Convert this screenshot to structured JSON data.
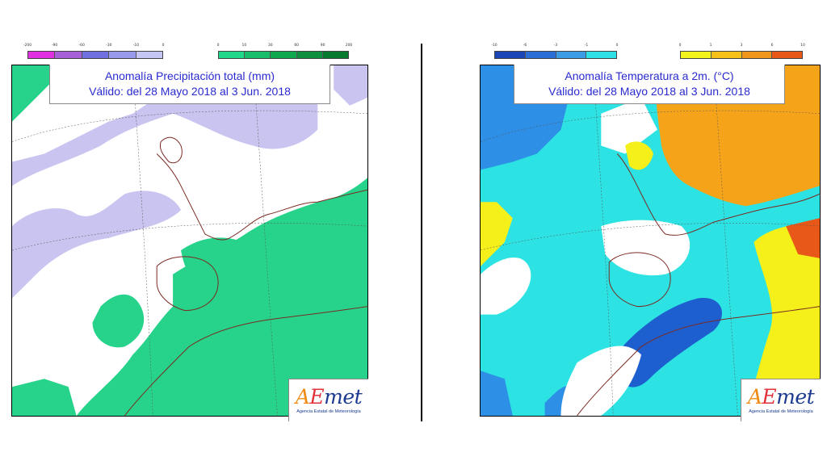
{
  "left_map": {
    "title_line1": "Anomalía Precipitación total (mm)",
    "title_line2": "Válido: del 28 Mayo 2018 al 3 Jun. 2018",
    "legend_negative": {
      "ticks": [
        "-200",
        "-90",
        "-60",
        "-30",
        "-10",
        "0"
      ],
      "colors": [
        "#e030e0",
        "#a860d8",
        "#7070e0",
        "#9a9aec",
        "#c6c6f4"
      ]
    },
    "legend_positive": {
      "ticks": [
        "0",
        "10",
        "30",
        "60",
        "90",
        "200"
      ],
      "colors": [
        "#1fd88a",
        "#18be6a",
        "#10a84e",
        "#0c9040",
        "#087a30"
      ]
    },
    "logo_text": "AEmet",
    "logo_sub": "Agencia Estatal de Meteorología"
  },
  "right_map": {
    "title_line1": "Anomalía Temperatura a 2m. (°C)",
    "title_line2": "Válido: del 28 Mayo 2018 al 3 Jun. 2018",
    "legend_negative": {
      "ticks": [
        "-10",
        "-6",
        "-3",
        "-1",
        "0"
      ],
      "colors": [
        "#1a46b8",
        "#2b6fd6",
        "#3c9ce6",
        "#2fe0e6"
      ]
    },
    "legend_positive": {
      "ticks": [
        "0",
        "1",
        "3",
        "6",
        "10"
      ],
      "colors": [
        "#f2f21c",
        "#f6c21a",
        "#f0961a",
        "#e85818"
      ]
    },
    "logo_text": "AEmet",
    "logo_sub": "Agencia Estatal de Meteorología"
  },
  "colors": {
    "precip_negative_fill": "#c9c4f0",
    "precip_positive_fill": "#27d38a",
    "temp_cyan": "#2ce2e2",
    "temp_blue": "#2e8fe6",
    "temp_dark_blue": "#1e5fd0",
    "temp_yellow": "#f5f01a",
    "temp_orange": "#f5a41a",
    "coast": "#7a2a22",
    "title_text": "#2a2ad0"
  }
}
